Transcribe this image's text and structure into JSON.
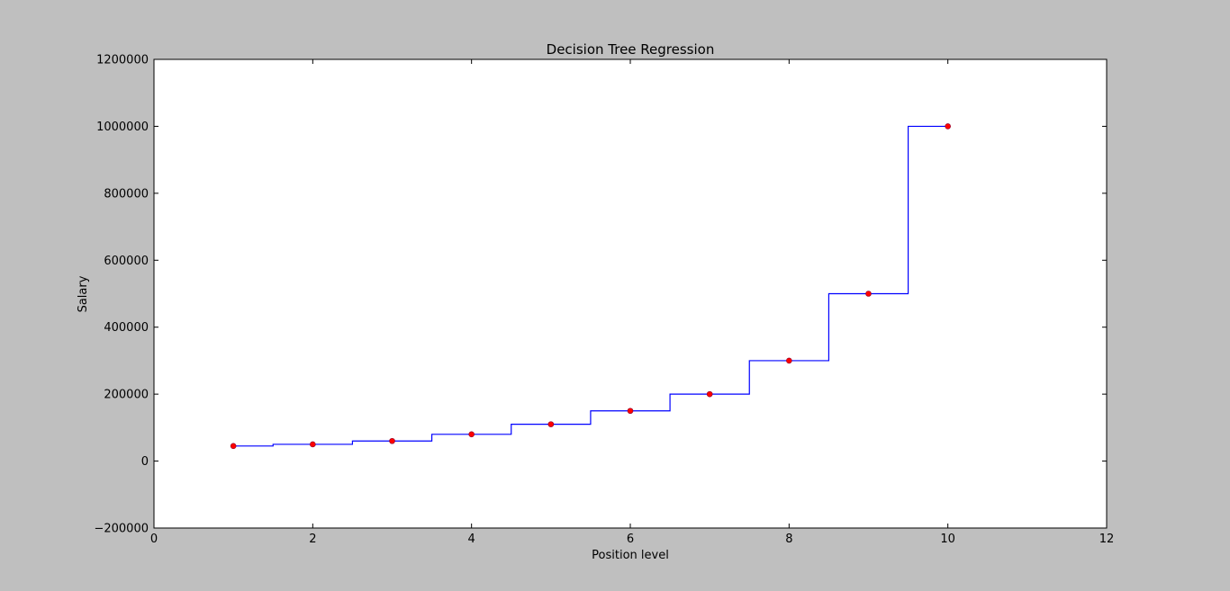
{
  "chart_data": {
    "type": "line",
    "title": "Decision Tree Regression",
    "xlabel": "Position level",
    "ylabel": "Salary",
    "xlim": [
      0,
      12
    ],
    "ylim": [
      -200000,
      1200000
    ],
    "xticks": [
      0,
      2,
      4,
      6,
      8,
      10,
      12
    ],
    "yticks": [
      -200000,
      0,
      200000,
      400000,
      600000,
      800000,
      1000000,
      1200000
    ],
    "xtick_labels": [
      "0",
      "2",
      "4",
      "6",
      "8",
      "10",
      "12"
    ],
    "ytick_labels": [
      "−200000",
      "0",
      "200000",
      "400000",
      "600000",
      "800000",
      "1000000",
      "1200000"
    ],
    "grid": false,
    "series": [
      {
        "type": "scatter",
        "color": "#ff0000",
        "x": [
          1,
          2,
          3,
          4,
          5,
          6,
          7,
          8,
          9,
          10
        ],
        "y": [
          45000,
          50000,
          60000,
          80000,
          110000,
          150000,
          200000,
          300000,
          500000,
          1000000
        ]
      },
      {
        "type": "step-line",
        "color": "#0000ff",
        "x": [
          1,
          1.5,
          1.5,
          2.5,
          2.5,
          3.5,
          3.5,
          4.5,
          4.5,
          5.5,
          5.5,
          6.5,
          6.5,
          7.5,
          7.5,
          8.5,
          8.5,
          9.5,
          9.5,
          10
        ],
        "y": [
          45000,
          45000,
          50000,
          50000,
          60000,
          60000,
          80000,
          80000,
          110000,
          110000,
          150000,
          150000,
          200000,
          200000,
          300000,
          300000,
          500000,
          500000,
          1000000,
          1000000
        ]
      }
    ]
  }
}
